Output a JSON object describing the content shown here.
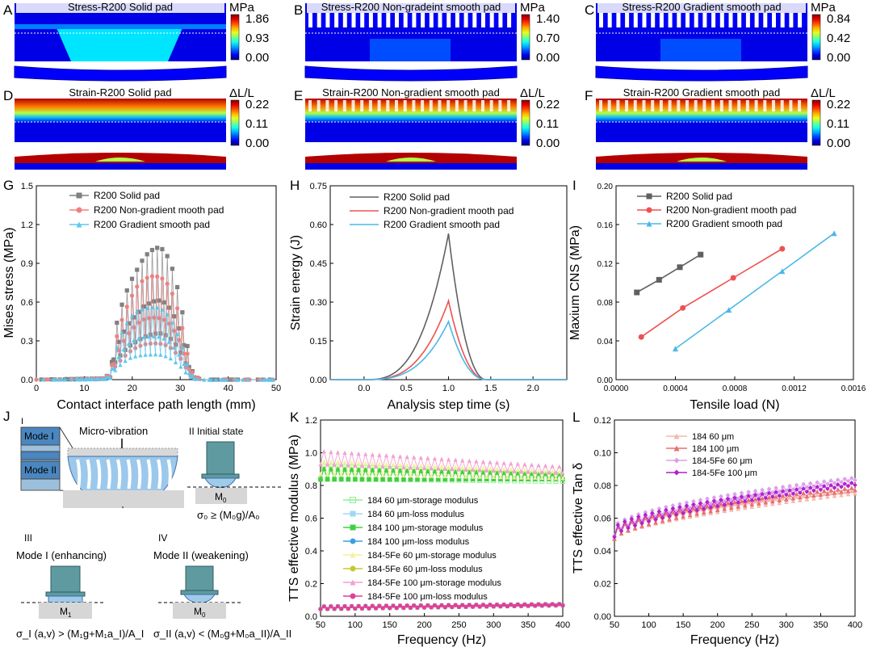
{
  "panel_letters": {
    "A": "A",
    "B": "B",
    "C": "C",
    "D": "D",
    "E": "E",
    "F": "F",
    "G": "G",
    "H": "H",
    "I": "I",
    "J": "J",
    "K": "K",
    "L": "L"
  },
  "fea": [
    {
      "letter": "A",
      "title": "Stress-R200 Solid pad",
      "unit": "MPa",
      "scale": [
        "1.86",
        "0.93",
        "0.00"
      ],
      "kind": "stress",
      "pattern": "solid"
    },
    {
      "letter": "B",
      "title": "Stress-R200 Non-gradeint smooth pad",
      "unit": "MPa",
      "scale": [
        "1.40",
        "0.70",
        "0.00"
      ],
      "kind": "stress",
      "pattern": "pillar"
    },
    {
      "letter": "C",
      "title": "Stress-R200 Gradient smooth pad",
      "unit": "MPa",
      "scale": [
        "0.84",
        "0.42",
        "0.00"
      ],
      "kind": "stress",
      "pattern": "pillar"
    },
    {
      "letter": "D",
      "title": "Strain-R200 Solid pad",
      "unit": "ΔL/L",
      "scale": [
        "0.22",
        "0.11",
        "0.00"
      ],
      "kind": "strain",
      "pattern": "solid"
    },
    {
      "letter": "E",
      "title": "Strain-R200 Non-gradient smooth pad",
      "unit": "ΔL/L",
      "scale": [
        "0.22",
        "0.11",
        "0.00"
      ],
      "kind": "strain",
      "pattern": "pillar"
    },
    {
      "letter": "F",
      "title": "Strain-R200 Gradient smooth pad",
      "unit": "ΔL/L",
      "scale": [
        "0.22",
        "0.11",
        "0.00"
      ],
      "kind": "strain",
      "pattern": "pillar"
    }
  ],
  "schematic": {
    "micro_vibration": "Micro-vibration",
    "roman_I": "I",
    "mode_I": "Mode I",
    "mode_II": "Mode II",
    "state_II": "II  Initial state",
    "m0": "M",
    "m0_sub": "0",
    "m1": "M",
    "m1_sub": "1",
    "eq0": "σ₀ ≥ (M₀g)/A₀",
    "state_III": "III",
    "mode_I_enh": "Mode I (enhancing)",
    "state_IV": "IV",
    "mode_II_weak": "Mode II (weakening)",
    "eq1": "σ_I (a,v) > (M₁g+M₁a_I)/A_I",
    "eq2": "σ_II (a,v) < (M₀g+M₀a_II)/A_II"
  },
  "chart_data": [
    {
      "id": "G",
      "type": "scatter",
      "xlabel": "Contact interface path length (mm)",
      "ylabel": "Mises stress (MPa)",
      "xlim": [
        0,
        50
      ],
      "ylim": [
        0,
        1.5
      ],
      "xticks": [
        0,
        10,
        20,
        30,
        40,
        50
      ],
      "yticks": [
        0.0,
        0.3,
        0.6,
        0.9,
        1.2,
        1.5
      ],
      "ytick_labels": [
        "0.0",
        "0.3",
        "0.6",
        "0.9",
        "1.2",
        "1.5"
      ],
      "legend": "top-left",
      "series": [
        {
          "name": "R200 Solid pad",
          "color": "#808080",
          "marker": "square",
          "envelope": [
            [
              0,
              0
            ],
            [
              14,
              0.01
            ],
            [
              15.5,
              0.05
            ],
            [
              16.5,
              0.4
            ],
            [
              18,
              0.6
            ],
            [
              19.5,
              0.75
            ],
            [
              21,
              0.85
            ],
            [
              22.5,
              0.95
            ],
            [
              24,
              1.0
            ],
            [
              25,
              1.02
            ],
            [
              26,
              1.02
            ],
            [
              27,
              0.98
            ],
            [
              28,
              0.9
            ],
            [
              29,
              0.78
            ],
            [
              30,
              0.62
            ],
            [
              31,
              0.4
            ],
            [
              32,
              0.12
            ],
            [
              33,
              0.02
            ],
            [
              35,
              0
            ],
            [
              50,
              0
            ]
          ]
        },
        {
          "name": "R200 Non-gradient mooth pad",
          "color": "#f08080",
          "marker": "circle",
          "envelope": [
            [
              0,
              0
            ],
            [
              14,
              0.01
            ],
            [
              15.5,
              0.05
            ],
            [
              16.5,
              0.3
            ],
            [
              18,
              0.48
            ],
            [
              19.5,
              0.62
            ],
            [
              21,
              0.72
            ],
            [
              22.5,
              0.78
            ],
            [
              24,
              0.8
            ],
            [
              25,
              0.8
            ],
            [
              26,
              0.79
            ],
            [
              27,
              0.76
            ],
            [
              28,
              0.7
            ],
            [
              29,
              0.6
            ],
            [
              30,
              0.48
            ],
            [
              31,
              0.3
            ],
            [
              32,
              0.1
            ],
            [
              33,
              0.02
            ],
            [
              35,
              0
            ],
            [
              50,
              0
            ]
          ]
        },
        {
          "name": "R200 Gradient smooth pad",
          "color": "#5bc8f0",
          "marker": "triangle",
          "envelope": [
            [
              0,
              0
            ],
            [
              14,
              0.01
            ],
            [
              15.5,
              0.04
            ],
            [
              16.5,
              0.22
            ],
            [
              18,
              0.38
            ],
            [
              19.5,
              0.48
            ],
            [
              21,
              0.53
            ],
            [
              22.5,
              0.55
            ],
            [
              24,
              0.56
            ],
            [
              25,
              0.56
            ],
            [
              26,
              0.55
            ],
            [
              27,
              0.52
            ],
            [
              28,
              0.47
            ],
            [
              29,
              0.39
            ],
            [
              30,
              0.3
            ],
            [
              31,
              0.18
            ],
            [
              32,
              0.07
            ],
            [
              33,
              0.01
            ],
            [
              35,
              0
            ],
            [
              50,
              0
            ]
          ]
        }
      ]
    },
    {
      "id": "H",
      "type": "line",
      "xlabel": "Analysis step time (s)",
      "ylabel": "Strain energy (J)",
      "xlim": [
        -0.4,
        2.4
      ],
      "ylim": [
        0,
        0.75
      ],
      "xticks": [
        0.0,
        0.5,
        1.0,
        1.5,
        2.0
      ],
      "xtick_labels": [
        "0.0",
        "0.5",
        "1.0",
        "1.5",
        "2.0"
      ],
      "yticks": [
        0.0,
        0.15,
        0.3,
        0.45,
        0.6,
        0.75
      ],
      "ytick_labels": [
        "0.00",
        "0.15",
        "0.30",
        "0.45",
        "0.60",
        "0.75"
      ],
      "legend": "top-left",
      "series": [
        {
          "name": "R200 Solid pad",
          "color": "#606060",
          "peak": 0.565
        },
        {
          "name": "R200 Non-gradient mooth pad",
          "color": "#f05050",
          "peak": 0.305
        },
        {
          "name": "R200 Gradient smooth pad",
          "color": "#4ab8e8",
          "peak": 0.225
        }
      ]
    },
    {
      "id": "I",
      "type": "line",
      "xlabel": "Tensile load (N)",
      "ylabel": "Maxium CNS (MPa)",
      "xlim": [
        0,
        0.0016
      ],
      "ylim": [
        0,
        0.2
      ],
      "xticks": [
        0,
        0.0004,
        0.0008,
        0.0012,
        0.0016
      ],
      "xtick_labels": [
        "0.0000",
        "0.0004",
        "0.0008",
        "0.0012",
        "0.0016"
      ],
      "yticks": [
        0,
        0.04,
        0.08,
        0.12,
        0.16,
        0.2
      ],
      "ytick_labels": [
        "0.00",
        "0.04",
        "0.08",
        "0.12",
        "0.16",
        "0.20"
      ],
      "legend": "top-left",
      "series": [
        {
          "name": "R200 Solid pad",
          "color": "#606060",
          "marker": "square",
          "x": [
            0.00014,
            0.00029,
            0.00043,
            0.00057
          ],
          "y": [
            0.09,
            0.103,
            0.116,
            0.129
          ]
        },
        {
          "name": "R200 Non-gradient mooth pad",
          "color": "#f05050",
          "marker": "circle",
          "x": [
            0.00017,
            0.00045,
            0.00079,
            0.00112
          ],
          "y": [
            0.044,
            0.074,
            0.105,
            0.135
          ]
        },
        {
          "name": "R200 Gradient smooth pad",
          "color": "#4ab8e8",
          "marker": "triangle",
          "x": [
            0.0004,
            0.00076,
            0.00112,
            0.00147
          ],
          "y": [
            0.032,
            0.072,
            0.112,
            0.151
          ]
        }
      ]
    },
    {
      "id": "K",
      "type": "line",
      "xlabel": "Frequency (Hz)",
      "ylabel": "TTS effective modulus (MPa)",
      "xlim": [
        50,
        400
      ],
      "ylim": [
        0,
        1.2
      ],
      "xticks": [
        50,
        100,
        150,
        200,
        250,
        300,
        350,
        400
      ],
      "yticks": [
        0.0,
        0.2,
        0.4,
        0.6,
        0.8,
        1.0,
        1.2
      ],
      "ytick_labels": [
        "0.0",
        "0.2",
        "0.4",
        "0.6",
        "0.8",
        "1.0",
        "1.2"
      ],
      "legend": "center",
      "series": [
        {
          "name": "184 60 μm-storage modulus",
          "color": "#90ee90",
          "marker": "square-open",
          "y0": 0.87,
          "y1": 0.84,
          "spread": 0.05
        },
        {
          "name": "184 60 μm-loss modulus",
          "color": "#a0d8f0",
          "marker": "square",
          "y0": 0.05,
          "y1": 0.07,
          "spread": 0.01
        },
        {
          "name": "184 100 μm-storage modulus",
          "color": "#40d040",
          "marker": "square",
          "y0": 0.86,
          "y1": 0.85,
          "spread": 0.04
        },
        {
          "name": "184 100 μm-loss modulus",
          "color": "#3aa0e0",
          "marker": "circle",
          "y0": 0.05,
          "y1": 0.07,
          "spread": 0.01
        },
        {
          "name": "184-5Fe 60 μm-storage modulus",
          "color": "#f4f0a0",
          "marker": "triangle",
          "y0": 0.9,
          "y1": 0.86,
          "spread": 0.05
        },
        {
          "name": "184-5Fe 60 μm-loss modulus",
          "color": "#c8c830",
          "marker": "circle",
          "y0": 0.05,
          "y1": 0.07,
          "spread": 0.01
        },
        {
          "name": "184-5Fe 100 μm-storage modulus",
          "color": "#f4a0d0",
          "marker": "triangle",
          "y0": 0.96,
          "y1": 0.89,
          "spread": 0.05
        },
        {
          "name": "184-5Fe 100 μm-loss modulus",
          "color": "#e0409a",
          "marker": "circle",
          "y0": 0.05,
          "y1": 0.07,
          "spread": 0.01
        }
      ]
    },
    {
      "id": "L",
      "type": "line",
      "xlabel": "Frequency (Hz)",
      "ylabel": "TTS effective Tan δ",
      "xlim": [
        50,
        400
      ],
      "ylim": [
        0,
        0.12
      ],
      "xticks": [
        50,
        100,
        150,
        200,
        250,
        300,
        350,
        400
      ],
      "yticks": [
        0,
        0.02,
        0.04,
        0.06,
        0.08,
        0.1,
        0.12
      ],
      "ytick_labels": [
        "0.00",
        "0.02",
        "0.04",
        "0.06",
        "0.08",
        "0.10",
        "0.12"
      ],
      "legend": "top-left",
      "series": [
        {
          "name": "184 60 μm",
          "color": "#f4b8b0",
          "marker": "triangle",
          "y0": 0.05,
          "y1": 0.076
        },
        {
          "name": "184 100 μm",
          "color": "#e87070",
          "marker": "triangle",
          "y0": 0.05,
          "y1": 0.078
        },
        {
          "name": "184-5Fe 60 μm",
          "color": "#dca0e8",
          "marker": "diamond",
          "y0": 0.052,
          "y1": 0.084
        },
        {
          "name": "184-5Fe 100 μm",
          "color": "#b020d0",
          "marker": "diamond",
          "y0": 0.051,
          "y1": 0.081
        }
      ]
    }
  ]
}
